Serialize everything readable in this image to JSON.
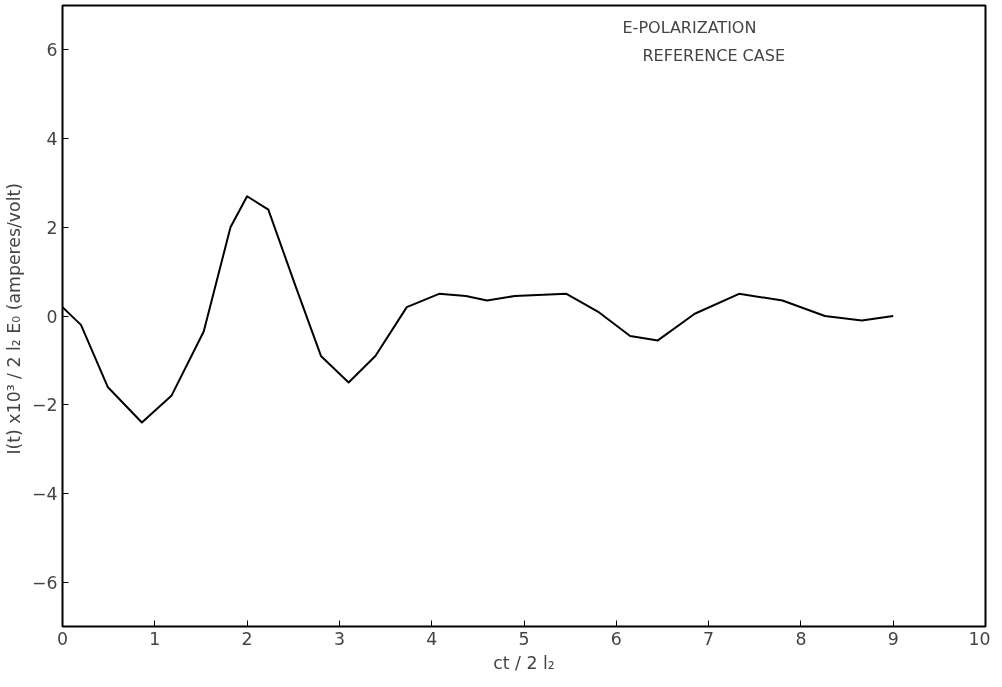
{
  "chart_data": {
    "type": "line",
    "xlabel": "ct / 2 l₂",
    "ylabel": "I(t) x10³ / 2 l₂ E₀  (amperes/volt)",
    "annotations": [
      "E-POLARIZATION",
      "REFERENCE CASE"
    ],
    "series": [
      {
        "color": "#000000",
        "x": [
          0,
          0.2,
          0.49,
          0.86,
          1.18,
          1.53,
          1.82,
          2.0,
          2.23,
          2.52,
          2.8,
          3.1,
          3.39,
          3.73,
          4.08,
          4.37,
          4.6,
          4.9,
          5.46,
          5.8,
          6.15,
          6.45,
          6.85,
          7.33,
          7.8,
          8.26,
          8.66,
          9.0
        ],
        "values": [
          0.2,
          -0.2,
          -1.6,
          -2.4,
          -1.8,
          -0.35,
          2.0,
          2.7,
          2.4,
          0.7,
          -0.9,
          -1.5,
          -0.9,
          0.2,
          0.5,
          0.45,
          0.35,
          0.45,
          0.5,
          0.1,
          -0.45,
          -0.55,
          0.05,
          0.5,
          0.35,
          0.0,
          -0.1,
          0.0
        ]
      }
    ],
    "xlim": [
      0,
      10
    ],
    "ylim": [
      -7,
      7
    ],
    "xticks": [
      0,
      1,
      2,
      3,
      4,
      5,
      6,
      7,
      8,
      9,
      10
    ],
    "yticks": [
      -6,
      -4,
      -2,
      0,
      2,
      4,
      6
    ],
    "line_style": "solid"
  }
}
